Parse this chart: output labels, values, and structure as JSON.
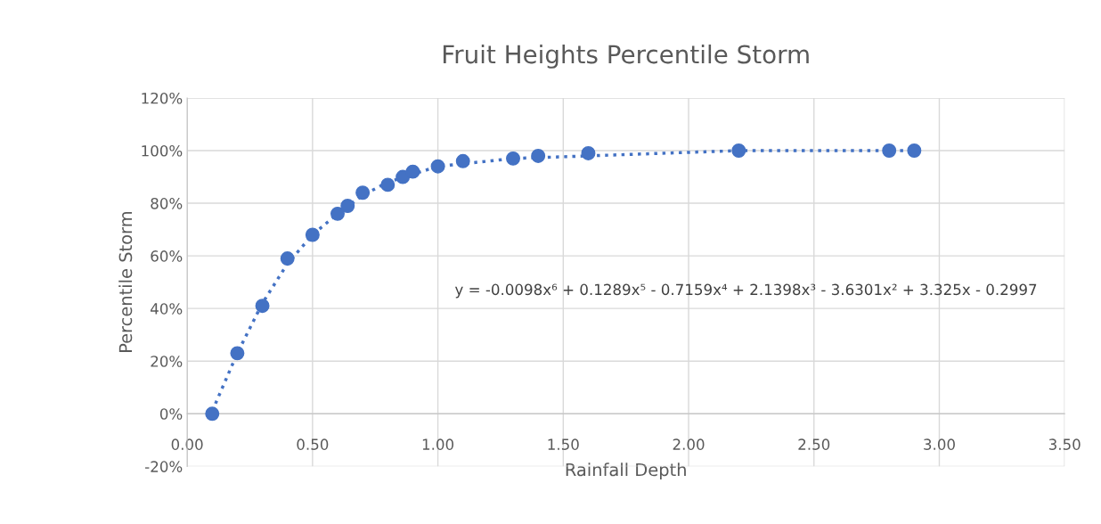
{
  "chart_data": {
    "type": "scatter",
    "title": "Fruit Heights Percentile Storm",
    "xlabel": "Rainfall Depth",
    "ylabel": "Percentile Storm",
    "x": [
      0.1,
      0.2,
      0.3,
      0.4,
      0.5,
      0.6,
      0.64,
      0.7,
      0.8,
      0.86,
      0.9,
      1.0,
      1.1,
      1.3,
      1.4,
      1.6,
      2.2,
      2.8,
      2.9
    ],
    "series": [
      {
        "color": "#4472c4",
        "marker": "circle",
        "values": [
          0,
          23,
          41,
          59,
          68,
          76,
          79,
          84,
          87,
          90,
          92,
          94,
          96,
          97,
          98,
          99,
          100,
          100,
          100
        ]
      },
      {
        "type": "line",
        "color": "#4472c4",
        "line_style": "dotted",
        "marker": "none",
        "x": [
          0.1,
          0.2,
          0.3,
          0.4,
          0.5,
          0.6,
          0.7,
          0.8,
          0.9,
          1.0,
          1.1,
          1.3,
          1.6,
          2.2,
          2.8,
          2.9
        ],
        "values": [
          1,
          23,
          42,
          57,
          68,
          76,
          83,
          88,
          91,
          94,
          95,
          97,
          98,
          100,
          100,
          100
        ]
      }
    ],
    "annotations": [
      "y = -0.0098x⁶ + 0.1289x⁵ - 0.7159x⁴ + 2.1398x³ - 3.6301x² + 3.325x - 0.2997"
    ],
    "xlim": [
      0,
      3.5
    ],
    "xticks": [
      {
        "value": 0,
        "label": "0.00"
      },
      {
        "value": 0.5,
        "label": "0.50"
      },
      {
        "value": 1,
        "label": "1.00"
      },
      {
        "value": 1.5,
        "label": "1.50"
      },
      {
        "value": 2,
        "label": "2.00"
      },
      {
        "value": 2.5,
        "label": "2.50"
      },
      {
        "value": 3,
        "label": "3.00"
      },
      {
        "value": 3.5,
        "label": "3.50"
      }
    ],
    "ylim": [
      -20,
      120
    ],
    "yticks": [
      {
        "value": -20,
        "label": "-20%"
      },
      {
        "value": 0,
        "label": "0%"
      },
      {
        "value": 20,
        "label": "20%"
      },
      {
        "value": 40,
        "label": "40%"
      },
      {
        "value": 60,
        "label": "60%"
      },
      {
        "value": 80,
        "label": "80%"
      },
      {
        "value": 100,
        "label": "100%"
      },
      {
        "value": 120,
        "label": "120%"
      }
    ],
    "grid": true,
    "legend": false
  }
}
